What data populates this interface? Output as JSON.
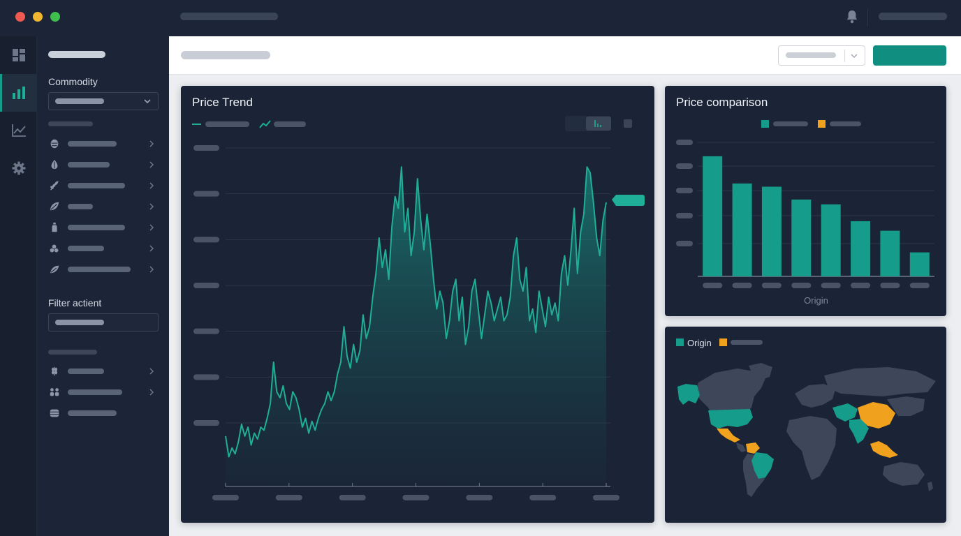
{
  "app": {
    "colors": {
      "accent": "#169c8a",
      "accent_bright": "#1fae98",
      "highlight": "#f0a21f",
      "panel": "#1b2336",
      "placeholder": "#4a5466"
    }
  },
  "sidebar": {
    "commodity_label": "Commodity",
    "filter_label": "Filter actient",
    "commodity_icons": [
      "hops-icon",
      "leaf-drop-icon",
      "wheat-icon",
      "feather-leaf-icon",
      "bottle-icon",
      "berries-icon",
      "leaf-icon"
    ],
    "filter_icons": [
      "grain-icon",
      "herd-icon",
      "barrel-icon"
    ],
    "rail_icons": [
      "dashboard-icon",
      "bar-chart-icon",
      "line-chart-icon",
      "settings-icon"
    ]
  },
  "charts": {
    "price_trend": {
      "title": "Price Trend"
    },
    "price_comparison": {
      "title": "Price comparison"
    },
    "origin_map": {
      "legend_label": "Origin"
    }
  },
  "chart_data": [
    {
      "type": "area",
      "title": "Price Trend",
      "x": [
        0,
        1,
        2,
        3,
        4,
        5,
        6,
        7,
        8,
        9,
        10,
        11,
        12,
        13,
        14,
        15,
        16,
        17,
        18,
        19,
        20,
        21,
        22,
        23,
        24,
        25,
        26,
        27,
        28,
        29,
        30,
        31,
        32,
        33,
        34,
        35,
        36,
        37,
        38,
        39,
        40,
        41,
        42,
        43,
        44,
        45,
        46,
        47,
        48,
        49,
        50,
        51,
        52,
        53,
        54,
        55,
        56,
        57,
        58,
        59,
        60,
        61,
        62,
        63,
        64,
        65,
        66,
        67,
        68,
        69,
        70,
        71,
        72,
        73,
        74,
        75,
        76,
        77,
        78,
        79,
        80,
        81,
        82,
        83,
        84,
        85,
        86,
        87,
        88,
        89,
        90,
        91,
        92,
        93,
        94,
        95,
        96,
        97,
        98,
        99,
        100,
        101,
        102,
        103,
        104,
        105,
        106,
        107,
        108,
        109,
        110,
        111,
        112,
        113,
        114,
        115,
        116,
        117,
        118,
        119
      ],
      "values": [
        0.09,
        0.02,
        0.05,
        0.03,
        0.07,
        0.13,
        0.09,
        0.12,
        0.06,
        0.1,
        0.08,
        0.12,
        0.11,
        0.15,
        0.2,
        0.34,
        0.24,
        0.22,
        0.26,
        0.2,
        0.18,
        0.24,
        0.22,
        0.18,
        0.12,
        0.15,
        0.1,
        0.14,
        0.11,
        0.15,
        0.18,
        0.2,
        0.24,
        0.21,
        0.24,
        0.3,
        0.34,
        0.46,
        0.36,
        0.32,
        0.4,
        0.34,
        0.38,
        0.5,
        0.42,
        0.46,
        0.56,
        0.64,
        0.76,
        0.66,
        0.72,
        0.62,
        0.8,
        0.9,
        0.86,
        1.0,
        0.78,
        0.86,
        0.7,
        0.78,
        0.96,
        0.82,
        0.72,
        0.84,
        0.74,
        0.62,
        0.52,
        0.58,
        0.54,
        0.42,
        0.48,
        0.58,
        0.62,
        0.48,
        0.56,
        0.4,
        0.46,
        0.58,
        0.62,
        0.52,
        0.42,
        0.5,
        0.58,
        0.54,
        0.48,
        0.52,
        0.56,
        0.48,
        0.5,
        0.56,
        0.7,
        0.76,
        0.62,
        0.58,
        0.66,
        0.48,
        0.52,
        0.44,
        0.58,
        0.52,
        0.46,
        0.56,
        0.5,
        0.54,
        0.48,
        0.64,
        0.7,
        0.6,
        0.72,
        0.86,
        0.64,
        0.78,
        0.84,
        1.0,
        0.98,
        0.88,
        0.76,
        0.7,
        0.82,
        0.88
      ],
      "ylim": [
        0,
        1.05
      ],
      "grid": true,
      "legend": "top-left",
      "series_color": "#1fae98"
    },
    {
      "type": "bar",
      "title": "Price comparison",
      "xlabel": "Origin",
      "values": [
        7.5,
        5.8,
        5.6,
        4.8,
        4.5,
        3.45,
        2.85,
        1.5
      ],
      "ylim": [
        0,
        8.5
      ],
      "grid": true,
      "legend": "top-center",
      "series_color": "#169c8a"
    }
  ]
}
